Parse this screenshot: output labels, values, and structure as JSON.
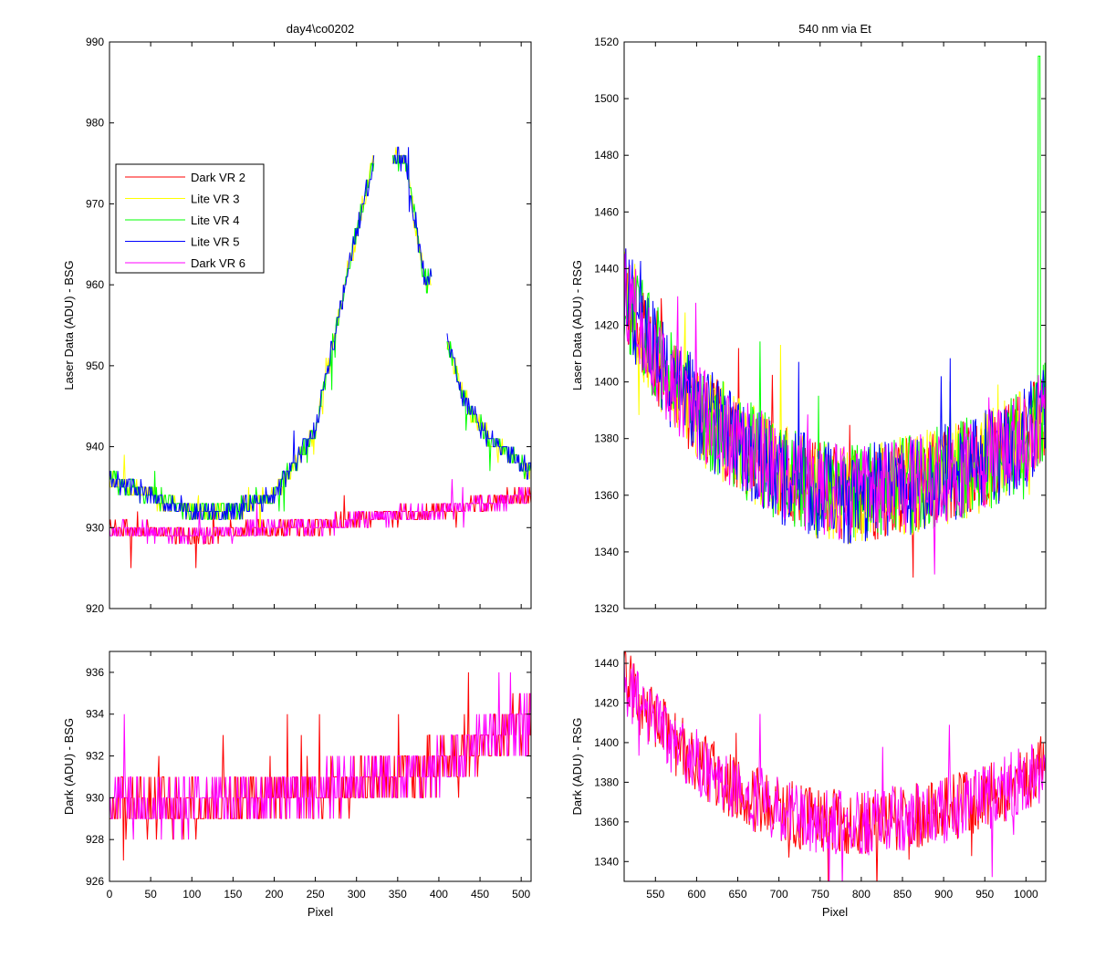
{
  "chart_data": [
    {
      "id": "top-left",
      "type": "line",
      "title": "day4\\co0202",
      "xlabel": "",
      "ylabel": "Laser Data (ADU) - BSG",
      "xlim": [
        0,
        512
      ],
      "ylim": [
        920,
        990
      ],
      "xticks": [
        0,
        50,
        100,
        150,
        200,
        250,
        300,
        350,
        400,
        450,
        500
      ],
      "yticks": [
        920,
        930,
        940,
        950,
        960,
        970,
        980,
        990
      ],
      "show_xtick_labels": false,
      "legend": {
        "position": "upper-left"
      },
      "series": [
        {
          "name": "Dark VR 2",
          "color": "#ff0000"
        },
        {
          "name": "Lite VR 3",
          "color": "#ffff00"
        },
        {
          "name": "Lite VR 4",
          "color": "#00ff00"
        },
        {
          "name": "Lite VR 5",
          "color": "#0000ff"
        },
        {
          "name": "Dark VR 6",
          "color": "#ff00ff"
        }
      ],
      "profile": [
        [
          0,
          936
        ],
        [
          50,
          934
        ],
        [
          100,
          932
        ],
        [
          150,
          932
        ],
        [
          200,
          934
        ],
        [
          250,
          942
        ],
        [
          290,
          962
        ],
        [
          320,
          975
        ],
        [
          345,
          976
        ],
        [
          360,
          975
        ],
        [
          380,
          962
        ],
        [
          385,
          960
        ],
        [
          390,
          961
        ],
        [
          410,
          953
        ],
        [
          430,
          946
        ],
        [
          460,
          941
        ],
        [
          512,
          937
        ]
      ],
      "gaps": [
        [
          322,
          343
        ],
        [
          392,
          409
        ]
      ],
      "dark_profile": [
        [
          0,
          930
        ],
        [
          100,
          929
        ],
        [
          200,
          930
        ],
        [
          250,
          930
        ],
        [
          300,
          931
        ],
        [
          400,
          932
        ],
        [
          512,
          934
        ]
      ]
    },
    {
      "id": "top-right",
      "type": "line",
      "title": "540 nm via Et",
      "xlabel": "",
      "ylabel": "Laser Data (ADU) - RSG",
      "xlim": [
        512,
        1024
      ],
      "ylim": [
        1320,
        1520
      ],
      "xticks": [
        550,
        600,
        650,
        700,
        750,
        800,
        850,
        900,
        950,
        1000
      ],
      "yticks": [
        1320,
        1340,
        1360,
        1380,
        1400,
        1420,
        1440,
        1460,
        1480,
        1500,
        1520
      ],
      "show_xtick_labels": false,
      "series": [
        {
          "name": "Dark VR 2",
          "color": "#ff0000"
        },
        {
          "name": "Lite VR 3",
          "color": "#ffff00"
        },
        {
          "name": "Lite VR 4",
          "color": "#00ff00"
        },
        {
          "name": "Lite VR 5",
          "color": "#0000ff"
        },
        {
          "name": "Dark VR 6",
          "color": "#ff00ff"
        }
      ],
      "profile": [
        [
          512,
          1432
        ],
        [
          540,
          1415
        ],
        [
          570,
          1400
        ],
        [
          600,
          1390
        ],
        [
          650,
          1378
        ],
        [
          700,
          1368
        ],
        [
          750,
          1362
        ],
        [
          800,
          1360
        ],
        [
          850,
          1363
        ],
        [
          900,
          1367
        ],
        [
          950,
          1372
        ],
        [
          1000,
          1380
        ],
        [
          1024,
          1390
        ]
      ],
      "spike": {
        "x": 1016,
        "y": 1515
      }
    },
    {
      "id": "bottom-left",
      "type": "line",
      "xlabel": "Pixel",
      "ylabel": "Dark (ADU) - BSG",
      "xlim": [
        0,
        512
      ],
      "ylim": [
        926,
        937
      ],
      "xticks": [
        0,
        50,
        100,
        150,
        200,
        250,
        300,
        350,
        400,
        450,
        500
      ],
      "yticks": [
        926,
        928,
        930,
        932,
        934,
        936
      ],
      "show_xtick_labels": true,
      "series": [
        {
          "name": "Dark VR 2",
          "color": "#ff0000"
        },
        {
          "name": "Dark VR 6",
          "color": "#ff00ff"
        }
      ],
      "profile": [
        [
          0,
          929.6
        ],
        [
          100,
          929.6
        ],
        [
          200,
          930
        ],
        [
          250,
          930.2
        ],
        [
          300,
          930.8
        ],
        [
          380,
          931.2
        ],
        [
          400,
          931.6
        ],
        [
          460,
          932.8
        ],
        [
          512,
          933.6
        ]
      ]
    },
    {
      "id": "bottom-right",
      "type": "line",
      "xlabel": "Pixel",
      "ylabel": "Dark (ADU) - RSG",
      "xlim": [
        512,
        1024
      ],
      "ylim": [
        1330,
        1446
      ],
      "xticks": [
        550,
        600,
        650,
        700,
        750,
        800,
        850,
        900,
        950,
        1000
      ],
      "yticks": [
        1340,
        1360,
        1380,
        1400,
        1420,
        1440
      ],
      "show_xtick_labels": true,
      "series": [
        {
          "name": "Dark VR 2",
          "color": "#ff0000"
        },
        {
          "name": "Dark VR 6",
          "color": "#ff00ff"
        }
      ],
      "profile": [
        [
          512,
          1432
        ],
        [
          540,
          1415
        ],
        [
          570,
          1400
        ],
        [
          600,
          1390
        ],
        [
          650,
          1376
        ],
        [
          700,
          1366
        ],
        [
          750,
          1360
        ],
        [
          800,
          1359
        ],
        [
          850,
          1362
        ],
        [
          900,
          1366
        ],
        [
          950,
          1372
        ],
        [
          1000,
          1382
        ],
        [
          1024,
          1388
        ]
      ]
    }
  ]
}
